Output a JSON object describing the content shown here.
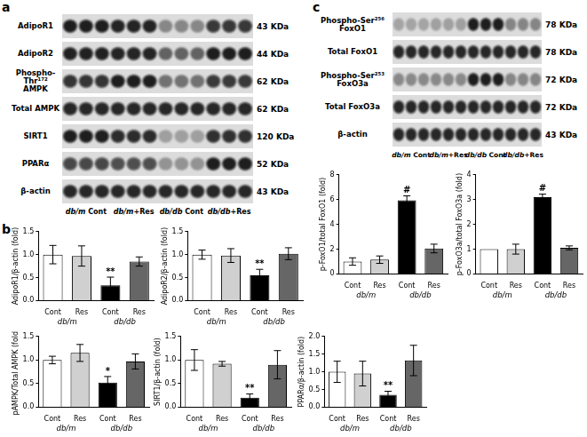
{
  "panels": [
    "a",
    "b",
    "c"
  ],
  "blots": [
    {
      "rows": [
        {
          "label": "AdipoR1",
          "size": "43 KDa"
        },
        {
          "label": "AdipoR2",
          "size": "44 KDa"
        },
        {
          "label": "Phospho-Thr¹⁷² AMPK",
          "size": "62 KDa"
        },
        {
          "label": "Total AMPK",
          "size": "62 KDa"
        },
        {
          "label": "SIRT1",
          "size": "120 KDa"
        },
        {
          "label": "PPARα",
          "size": "52 KDa"
        },
        {
          "label": "β-actin",
          "size": "43 KDa"
        }
      ],
      "lanes": [
        "db/m Cont",
        "db/m+Res",
        "db/db Cont",
        "db/db+Res"
      ]
    },
    {
      "rows": [
        {
          "label": "Phospho-Ser²⁵⁶ FoxO1",
          "size": "78 KDa"
        },
        {
          "label": "Total FoxO1",
          "size": "78 KDa"
        },
        {
          "label": "Phospho-Ser²⁵³ FoxO3a",
          "size": "72 KDa"
        },
        {
          "label": "Total FoxO3a",
          "size": "72 KDa"
        },
        {
          "label": "β-actin",
          "size": "43 KDa"
        }
      ],
      "lanes": [
        "db/m Cont",
        "db/m+Res",
        "db/db Cont",
        "db/db+Res"
      ]
    }
  ],
  "chart_data": [
    {
      "type": "bar",
      "y_label": "AdipoR1/β-actin (fold)",
      "categories": [
        "Cont",
        "Res",
        "Cont",
        "Res"
      ],
      "groups": [
        "db/m",
        "db/db"
      ],
      "values": [
        1.0,
        0.97,
        0.33,
        0.85
      ],
      "errors": [
        0.2,
        0.22,
        0.18,
        0.1
      ],
      "significance": [
        null,
        null,
        "**",
        null
      ],
      "colors": [
        "#ffffff",
        "#d0d0d0",
        "#000000",
        "#666666"
      ],
      "ylim": [
        0,
        1.5
      ],
      "yticks": [
        {
          "value": 0,
          "label": "0.0"
        },
        {
          "value": 0.5,
          "label": "0.5"
        },
        {
          "value": 1,
          "label": "1.0"
        },
        {
          "value": 1.5,
          "label": "1.5"
        }
      ],
      "grid": false
    },
    {
      "type": "bar",
      "y_label": "AdipoR2/β-actin (fold)",
      "categories": [
        "Cont",
        "Res",
        "Cont",
        "Res"
      ],
      "groups": [
        "db/m",
        "db/db"
      ],
      "values": [
        1.0,
        0.98,
        0.55,
        1.02
      ],
      "errors": [
        0.1,
        0.15,
        0.13,
        0.13
      ],
      "significance": [
        null,
        null,
        "**",
        null
      ],
      "colors": [
        "#ffffff",
        "#d0d0d0",
        "#000000",
        "#666666"
      ],
      "ylim": [
        0,
        1.5
      ],
      "yticks": [
        {
          "value": 0,
          "label": "0.0"
        },
        {
          "value": 0.5,
          "label": "0.5"
        },
        {
          "value": 1,
          "label": "1.0"
        },
        {
          "value": 1.5,
          "label": "1.5"
        }
      ],
      "grid": false
    },
    {
      "type": "bar",
      "y_label": "pAMPK/Total AMPK (fold)",
      "categories": [
        "Cont",
        "Res",
        "Cont",
        "Res"
      ],
      "groups": [
        "db/m",
        "db/db"
      ],
      "values": [
        1.0,
        1.15,
        0.52,
        0.97
      ],
      "errors": [
        0.08,
        0.18,
        0.13,
        0.16
      ],
      "significance": [
        null,
        null,
        "*",
        null
      ],
      "colors": [
        "#ffffff",
        "#d0d0d0",
        "#000000",
        "#666666"
      ],
      "ylim": [
        0,
        1.5
      ],
      "yticks": [
        {
          "value": 0,
          "label": "0.0"
        },
        {
          "value": 0.5,
          "label": "0.5"
        },
        {
          "value": 1,
          "label": "1.0"
        },
        {
          "value": 1.5,
          "label": "1.5"
        }
      ],
      "grid": false
    },
    {
      "type": "bar",
      "y_label": "SIRT1/β-actin (fold)",
      "categories": [
        "Cont",
        "Res",
        "Cont",
        "Res"
      ],
      "groups": [
        "db/m",
        "db/db"
      ],
      "values": [
        1.0,
        0.92,
        0.2,
        0.9
      ],
      "errors": [
        0.22,
        0.05,
        0.08,
        0.3
      ],
      "significance": [
        null,
        null,
        "**",
        null
      ],
      "colors": [
        "#ffffff",
        "#d0d0d0",
        "#000000",
        "#666666"
      ],
      "ylim": [
        0,
        1.5
      ],
      "yticks": [
        {
          "value": 0,
          "label": "0.0"
        },
        {
          "value": 0.5,
          "label": "0.5"
        },
        {
          "value": 1,
          "label": "1.0"
        },
        {
          "value": 1.5,
          "label": "1.5"
        }
      ],
      "grid": false
    },
    {
      "type": "bar",
      "y_label": "PPARα/β-actin (fold)",
      "categories": [
        "Cont",
        "Res",
        "Cont",
        "Res"
      ],
      "groups": [
        "db/m",
        "db/db"
      ],
      "values": [
        1.0,
        0.95,
        0.35,
        1.32
      ],
      "errors": [
        0.3,
        0.35,
        0.1,
        0.43
      ],
      "significance": [
        null,
        null,
        "**",
        null
      ],
      "colors": [
        "#ffffff",
        "#d0d0d0",
        "#000000",
        "#666666"
      ],
      "ylim": [
        0,
        2
      ],
      "yticks": [
        {
          "value": 0,
          "label": "0.0"
        },
        {
          "value": 0.5,
          "label": "0.5"
        },
        {
          "value": 1,
          "label": "1.0"
        },
        {
          "value": 1.5,
          "label": "1.5"
        },
        {
          "value": 2,
          "label": "2.0"
        }
      ],
      "grid": false
    },
    {
      "type": "bar",
      "y_label": "p-FoxO1/total FoxO1 (fold)",
      "categories": [
        "Cont",
        "Res",
        "Cont",
        "Res"
      ],
      "groups": [
        "db/m",
        "db/db"
      ],
      "values": [
        1.0,
        1.15,
        5.95,
        2.05
      ],
      "errors": [
        0.3,
        0.3,
        0.35,
        0.35
      ],
      "significance": [
        null,
        null,
        "#",
        null
      ],
      "colors": [
        "#ffffff",
        "#d0d0d0",
        "#000000",
        "#666666"
      ],
      "ylim": [
        0,
        8
      ],
      "yticks": [
        0,
        2,
        4,
        6,
        8
      ],
      "grid": false
    },
    {
      "type": "bar",
      "y_label": "p-FoxO3a/total FoxO3a (fold)",
      "categories": [
        "Cont",
        "Res",
        "Cont",
        "Res"
      ],
      "groups": [
        "db/m",
        "db/db"
      ],
      "values": [
        1.0,
        1.0,
        3.1,
        1.05
      ],
      "errors": [
        0,
        0.2,
        0.12,
        0.08
      ],
      "significance": [
        null,
        null,
        "#",
        null
      ],
      "colors": [
        "#ffffff",
        "#d0d0d0",
        "#000000",
        "#666666"
      ],
      "ylim": [
        0,
        4
      ],
      "yticks": [
        0,
        1,
        2,
        3,
        4
      ],
      "grid": false
    }
  ]
}
